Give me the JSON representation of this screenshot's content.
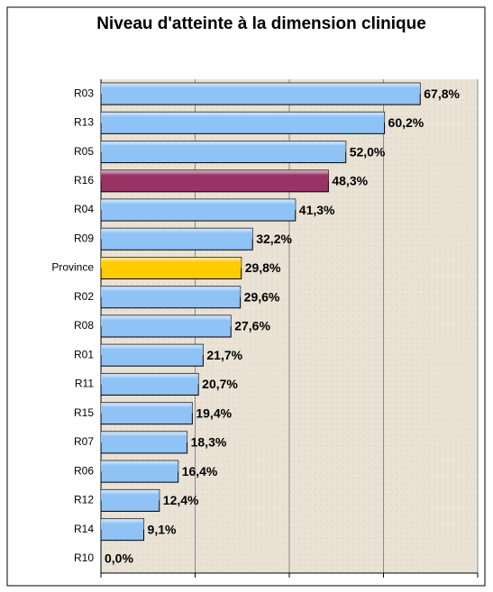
{
  "chart_data": {
    "type": "bar",
    "orientation": "horizontal",
    "title": "Niveau d'atteinte à la dimension clinique",
    "categories": [
      "R03",
      "R13",
      "R05",
      "R16",
      "R04",
      "R09",
      "Province",
      "R02",
      "R08",
      "R01",
      "R11",
      "R15",
      "R07",
      "R06",
      "R12",
      "R14",
      "R10"
    ],
    "values": [
      67.8,
      60.2,
      52.0,
      48.3,
      41.3,
      32.2,
      29.8,
      29.6,
      27.6,
      21.7,
      20.7,
      19.4,
      18.3,
      16.4,
      12.4,
      9.1,
      0.0
    ],
    "value_labels": [
      "67,8%",
      "60,2%",
      "52,0%",
      "48,3%",
      "41,3%",
      "32,2%",
      "29,8%",
      "29,6%",
      "27,6%",
      "21,7%",
      "20,7%",
      "19,4%",
      "18,3%",
      "16,4%",
      "12,4%",
      "9,1%",
      "0,0%"
    ],
    "colors": [
      "#8fc2f5",
      "#8fc2f5",
      "#8fc2f5",
      "#993366",
      "#8fc2f5",
      "#8fc2f5",
      "#ffcc00",
      "#8fc2f5",
      "#8fc2f5",
      "#8fc2f5",
      "#8fc2f5",
      "#8fc2f5",
      "#8fc2f5",
      "#8fc2f5",
      "#8fc2f5",
      "#8fc2f5",
      "#8fc2f5"
    ],
    "xlim": [
      0,
      80
    ],
    "xticks": [
      0,
      20,
      40,
      60,
      80
    ],
    "grid": true
  }
}
